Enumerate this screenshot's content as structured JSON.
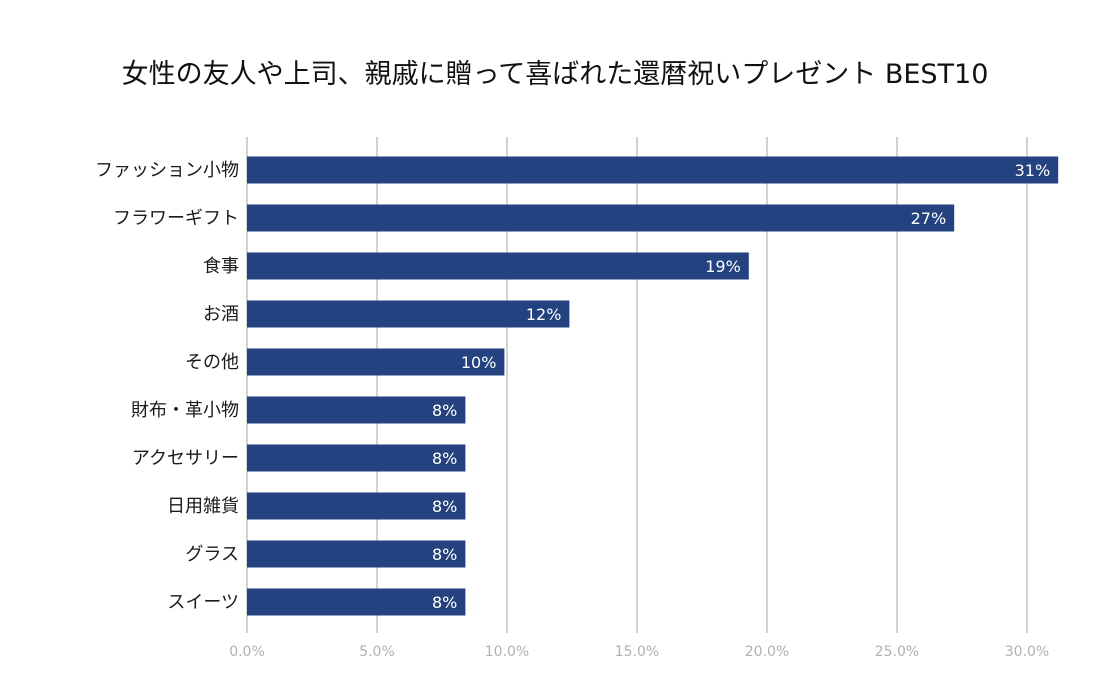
{
  "chart_data": {
    "type": "bar",
    "orientation": "horizontal",
    "title": "女性の友人や上司、親戚に贈って喜ばれた還暦祝いプレゼント BEST10",
    "categories": [
      "ファッション小物",
      "フラワーギフト",
      "食事",
      "お酒",
      "その他",
      "財布・革小物",
      "アクセサリー",
      "日用雑貨",
      "グラス",
      "スイーツ"
    ],
    "values": [
      31.2,
      27.2,
      19.3,
      12.4,
      9.9,
      8.4,
      8.4,
      8.4,
      8.4,
      8.4
    ],
    "data_labels": [
      "31%",
      "27%",
      "19%",
      "12%",
      "10%",
      "8%",
      "8%",
      "8%",
      "8%",
      "8%"
    ],
    "xlim": [
      0,
      30
    ],
    "xticks": [
      0,
      5,
      10,
      15,
      20,
      25,
      30
    ],
    "xtick_labels": [
      "0.0%",
      "5.0%",
      "10.0%",
      "15.0%",
      "20.0%",
      "25.0%",
      "30.0%"
    ],
    "xlabel": "",
    "ylabel": "",
    "grid": true,
    "bar_color": "#23427f"
  }
}
